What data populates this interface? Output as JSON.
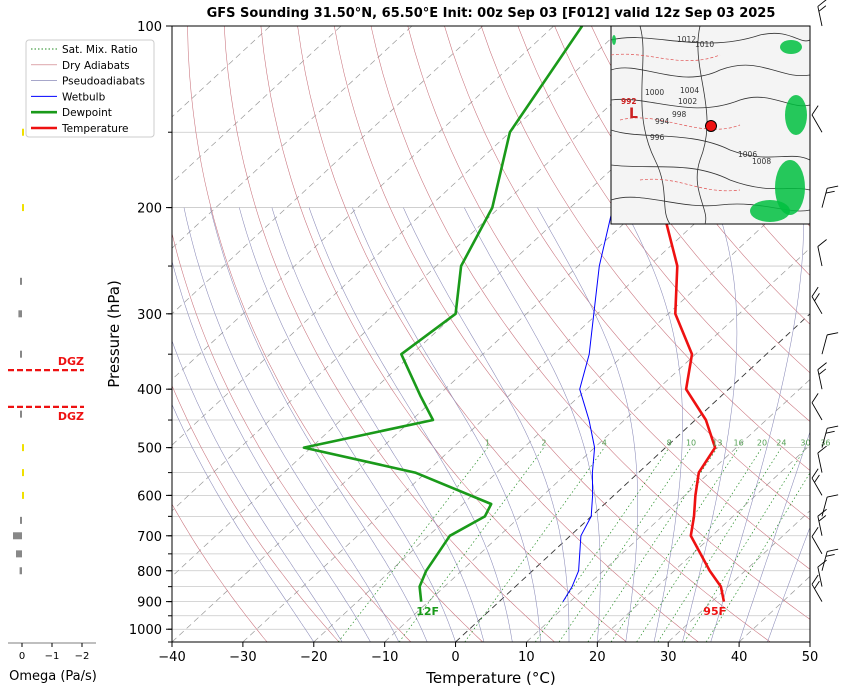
{
  "chart_data": {
    "type": "line",
    "title": "GFS Sounding 31.50°N, 65.50°E Init: 00z Sep 03 [F012] valid 12z Sep 03 2025",
    "xlabel": "Temperature (°C)",
    "ylabel": "Pressure (hPa)",
    "xlim": [
      -40,
      50
    ],
    "ylim": [
      1050,
      100
    ],
    "y_scale": "log",
    "x_ticks": [
      "−40",
      "−30",
      "−20",
      "−10",
      "0",
      "10",
      "20",
      "30",
      "40",
      "50"
    ],
    "x_tick_values": [
      -40,
      -30,
      -20,
      -10,
      0,
      10,
      20,
      30,
      40,
      50
    ],
    "y_ticks": [
      "100",
      "200",
      "300",
      "400",
      "500",
      "600",
      "700",
      "800",
      "900",
      "1000"
    ],
    "y_tick_values": [
      100,
      200,
      300,
      400,
      500,
      600,
      700,
      800,
      900,
      1000
    ],
    "legend": {
      "position": "top-left",
      "entries": [
        {
          "label": "Sat. Mix. Ratio",
          "color": "#228b22",
          "style": "dotted"
        },
        {
          "label": "Dry Adiabats",
          "color": "#c8707a",
          "style": "solid-thin"
        },
        {
          "label": "Pseudoadiabats",
          "color": "#8a8ab8",
          "style": "solid-thin"
        },
        {
          "label": "Wetbulb",
          "color": "#0000ff",
          "style": "solid"
        },
        {
          "label": "Dewpoint",
          "color": "#1a9a1a",
          "style": "solid-thick"
        },
        {
          "label": "Temperature",
          "color": "#ee1111",
          "style": "solid-thick"
        }
      ]
    },
    "series": [
      {
        "name": "Temperature",
        "color": "#ee1111",
        "p": [
          900,
          850,
          800,
          700,
          650,
          600,
          550,
          500,
          450,
          400,
          350,
          300,
          250,
          200,
          150,
          120,
          100
        ],
        "t": [
          31.7,
          29.0,
          25.0,
          17.0,
          14.5,
          11.5,
          8.5,
          7.0,
          1.5,
          -6.0,
          -10.5,
          -19.0,
          -26.0,
          -37.0,
          -45.0,
          -50.0,
          -53.0
        ]
      },
      {
        "name": "Dewpoint",
        "color": "#1a9a1a",
        "p": [
          900,
          850,
          800,
          700,
          650,
          620,
          550,
          500,
          450,
          410,
          350,
          300,
          250,
          200,
          150,
          100
        ],
        "t": [
          -11.0,
          -13.5,
          -15.0,
          -17.0,
          -15.0,
          -16.0,
          -31.5,
          -51.0,
          -37.0,
          -42.5,
          -51.5,
          -50.0,
          -56.5,
          -61.0,
          -70.0,
          -76.0
        ]
      },
      {
        "name": "Wetbulb",
        "color": "#0000ff",
        "p": [
          900,
          850,
          800,
          700,
          650,
          600,
          550,
          500,
          450,
          400,
          350,
          300,
          250,
          200,
          150
        ],
        "t": [
          9.0,
          8.0,
          6.5,
          1.5,
          0.0,
          -3.0,
          -6.5,
          -10.0,
          -15.0,
          -21.0,
          -25.0,
          -30.5,
          -37.0,
          -44.0,
          -47.0
        ]
      }
    ],
    "point_labels": [
      {
        "text": "12F",
        "p": 925,
        "t": -9.0,
        "color": "#1a9a1a"
      },
      {
        "text": "95F",
        "p": 925,
        "t": 31.5,
        "color": "#ee1111"
      }
    ],
    "mixing_ratio_labels": [
      "1",
      "2",
      "4",
      "8",
      "10",
      "13",
      "16",
      "20",
      "24",
      "30",
      "36"
    ],
    "mixing_ratio_values": [
      1,
      2,
      4,
      8,
      10,
      13,
      16,
      20,
      24,
      30,
      36
    ],
    "omega": {
      "xlabel": "Omega (Pa/s)",
      "ticks": [
        "0",
        "−1",
        "−2"
      ],
      "tick_values": [
        0,
        -1,
        -2
      ],
      "dgz_label": "DGZ",
      "dgz_pressures": [
        372,
        428
      ],
      "bars": [
        {
          "p": 150,
          "omega": -0.05,
          "color": "#f0e000"
        },
        {
          "p": 200,
          "omega": -0.05,
          "color": "#f0e000"
        },
        {
          "p": 265,
          "omega": 0.05,
          "color": "#888888"
        },
        {
          "p": 300,
          "omega": 0.12,
          "color": "#888888"
        },
        {
          "p": 350,
          "omega": 0.05,
          "color": "#888888"
        },
        {
          "p": 440,
          "omega": 0.05,
          "color": "#888888"
        },
        {
          "p": 500,
          "omega": -0.03,
          "color": "#f0e000"
        },
        {
          "p": 550,
          "omega": -0.03,
          "color": "#f0e000"
        },
        {
          "p": 600,
          "omega": -0.03,
          "color": "#f0e000"
        },
        {
          "p": 660,
          "omega": 0.05,
          "color": "#888888"
        },
        {
          "p": 700,
          "omega": 0.3,
          "color": "#888888"
        },
        {
          "p": 750,
          "omega": 0.2,
          "color": "#888888"
        },
        {
          "p": 800,
          "omega": 0.08,
          "color": "#888888"
        }
      ]
    },
    "wind_barbs_pressures": [
      100,
      150,
      200,
      250,
      300,
      350,
      400,
      450,
      500,
      550,
      600,
      650,
      700,
      750,
      800,
      850,
      900
    ]
  },
  "inset_map": {
    "labels": [
      "1012",
      "1010",
      "1000",
      "1004",
      "1002",
      "998",
      "996",
      "994",
      "1006",
      "1008",
      "992",
      "L"
    ]
  }
}
